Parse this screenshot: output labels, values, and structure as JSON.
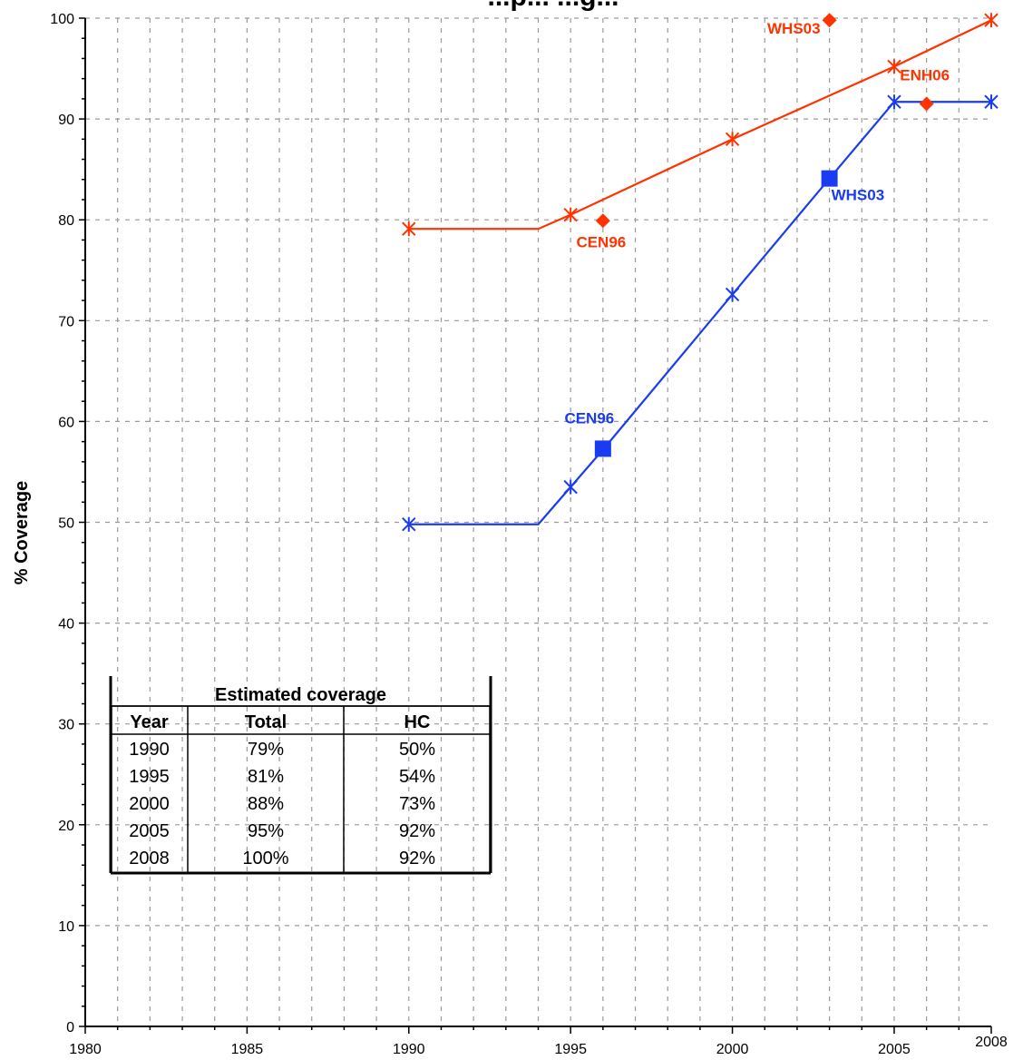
{
  "chart_data": {
    "type": "line",
    "title": "...p... ...g...",
    "ylabel": "% Coverage",
    "xlabel": "",
    "xlim": [
      1980,
      2008
    ],
    "ylim": [
      0,
      100
    ],
    "x_ticks": [
      1980,
      1985,
      1990,
      1995,
      2000,
      2005,
      2008
    ],
    "y_ticks": [
      0,
      10,
      20,
      30,
      40,
      50,
      60,
      70,
      80,
      90,
      100
    ],
    "grid": true,
    "series": [
      {
        "color": "#ff3300",
        "marker": "asterisk",
        "points": [
          [
            1990,
            79.1
          ],
          [
            1994,
            79.1
          ],
          [
            1995,
            80.5
          ],
          [
            2000,
            88.0
          ],
          [
            2005,
            95.2
          ],
          [
            2008,
            99.8
          ]
        ]
      },
      {
        "color": "#1a3cf0",
        "marker": "asterisk",
        "points": [
          [
            1990,
            49.8
          ],
          [
            1994,
            49.8
          ],
          [
            1995,
            53.5
          ],
          [
            1996,
            57.2
          ],
          [
            2000,
            72.6
          ],
          [
            2003,
            84.1
          ],
          [
            2005,
            91.7
          ],
          [
            2008,
            91.7
          ]
        ]
      }
    ],
    "survey_points": [
      {
        "label": "WHS03",
        "x": 2003,
        "y": 99.8,
        "color": "#ff3300",
        "marker": "diamond"
      },
      {
        "label": "ENH06",
        "x": 2006,
        "y": 91.5,
        "color": "#ff3300",
        "marker": "diamond"
      },
      {
        "label": "CEN96",
        "x": 1996,
        "y": 79.9,
        "color": "#ff3300",
        "marker": "diamond"
      },
      {
        "label": "CEN96",
        "x": 1996,
        "y": 57.3,
        "color": "#1a3cf0",
        "marker": "square"
      },
      {
        "label": "WHS03",
        "x": 2003,
        "y": 84.1,
        "color": "#1a3cf0",
        "marker": "square"
      }
    ],
    "table": {
      "title": "Estimated coverage",
      "columns": [
        "Year",
        "Total",
        "HC"
      ],
      "rows": [
        [
          "1990",
          "79%",
          "50%"
        ],
        [
          "1995",
          "81%",
          "54%"
        ],
        [
          "2000",
          "88%",
          "73%"
        ],
        [
          "2005",
          "95%",
          "92%"
        ],
        [
          "2008",
          "100%",
          "92%"
        ]
      ]
    }
  }
}
